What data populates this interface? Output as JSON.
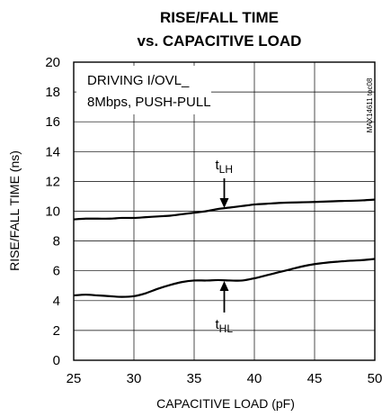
{
  "chart_data": {
    "type": "line",
    "title_line1": "RISE/FALL TIME",
    "title_line2": "vs. CAPACITIVE LOAD",
    "xlabel": "CAPACITIVE LOAD (pF)",
    "ylabel": "RISE/FALL TIME (ns)",
    "xlim": [
      25,
      50
    ],
    "ylim": [
      0,
      20
    ],
    "xticks": [
      25,
      30,
      35,
      40,
      45,
      50
    ],
    "yticks": [
      0,
      2,
      4,
      6,
      8,
      10,
      12,
      14,
      16,
      18,
      20
    ],
    "grid": true,
    "condition_line1": "DRIVING I/OVL_",
    "condition_line2": "8Mbps, PUSH-PULL",
    "figure_code": "MAX14611 toc08",
    "series": [
      {
        "name": "tLH",
        "x": [
          25,
          26,
          27,
          28,
          29,
          30,
          31,
          32,
          33,
          34,
          35,
          36,
          37,
          38,
          39,
          40,
          41,
          42,
          43,
          44,
          45,
          46,
          47,
          48,
          49,
          50
        ],
        "values": [
          9.45,
          9.5,
          9.5,
          9.5,
          9.55,
          9.55,
          9.6,
          9.65,
          9.7,
          9.8,
          9.9,
          10.0,
          10.15,
          10.25,
          10.35,
          10.45,
          10.5,
          10.55,
          10.58,
          10.6,
          10.62,
          10.65,
          10.68,
          10.7,
          10.73,
          10.78
        ]
      },
      {
        "name": "tHL",
        "x": [
          25,
          26,
          27,
          28,
          29,
          30,
          31,
          32,
          33,
          34,
          35,
          36,
          37,
          38,
          39,
          40,
          41,
          42,
          43,
          44,
          45,
          46,
          47,
          48,
          49,
          50
        ],
        "values": [
          4.35,
          4.4,
          4.35,
          4.3,
          4.25,
          4.3,
          4.5,
          4.8,
          5.05,
          5.25,
          5.35,
          5.35,
          5.38,
          5.35,
          5.35,
          5.5,
          5.7,
          5.9,
          6.1,
          6.3,
          6.45,
          6.55,
          6.62,
          6.68,
          6.72,
          6.8
        ]
      }
    ],
    "annotations": [
      {
        "main": "t",
        "sub": "LH",
        "x": 37.5,
        "y": 10.15
      },
      {
        "main": "t",
        "sub": "HL",
        "x": 37.5,
        "y": 5.38
      }
    ]
  }
}
